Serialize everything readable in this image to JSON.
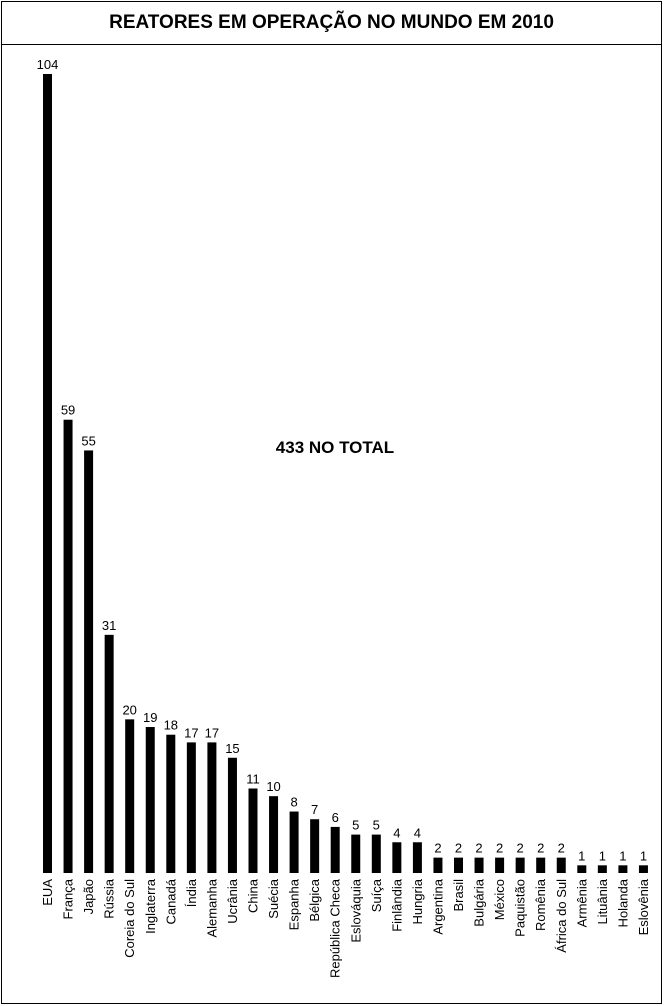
{
  "chart_data": {
    "type": "bar",
    "title": "REATORES EM OPERAÇÃO NO MUNDO EM 2010",
    "annotation": "433 NO TOTAL",
    "xlabel": "",
    "ylabel": "",
    "grid": false,
    "legend": "none",
    "ylim": [
      0,
      104
    ],
    "bar_color": "#000000",
    "categories": [
      "EUA",
      "França",
      "Japão",
      "Rússia",
      "Coreia do Sul",
      "Inglaterra",
      "Canadá",
      "Índia",
      "Alemanha",
      "Ucrânia",
      "China",
      "Suécia",
      "Espanha",
      "Bélgica",
      "República Checa",
      "Eslováquia",
      "Suíça",
      "Finlândia",
      "Hungria",
      "Argentina",
      "Brasil",
      "Bulgária",
      "México",
      "Paquistão",
      "Romênia",
      "África do Sul",
      "Armênia",
      "Lituânia",
      "Holanda",
      "Eslovênia"
    ],
    "values": [
      104,
      59,
      55,
      31,
      20,
      19,
      18,
      17,
      17,
      15,
      11,
      10,
      8,
      7,
      6,
      5,
      5,
      4,
      4,
      2,
      2,
      2,
      2,
      2,
      2,
      2,
      1,
      1,
      1,
      1
    ]
  }
}
